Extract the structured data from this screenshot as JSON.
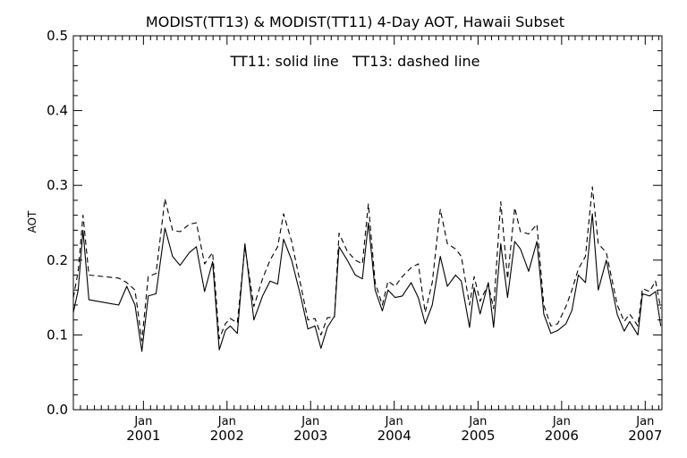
{
  "chart_data": {
    "type": "line",
    "title": "MODIST(TT13) & MODIST(TT11) 4-Day AOT, Hawaii Subset",
    "annotation": "TT11: solid line   TT13: dashed line",
    "ylabel": "AOT",
    "xlabel": "",
    "ylim": [
      0.0,
      0.5
    ],
    "yticks": [
      "0.0",
      "0.1",
      "0.2",
      "0.3",
      "0.4",
      "0.5"
    ],
    "xlim": [
      "2000-03-01",
      "2007-03-15"
    ],
    "xticks": [
      {
        "month": "Jan",
        "year": "2001",
        "date": "2001-01-01"
      },
      {
        "month": "Jan",
        "year": "2002",
        "date": "2002-01-01"
      },
      {
        "month": "Jan",
        "year": "2003",
        "date": "2003-01-01"
      },
      {
        "month": "Jan",
        "year": "2004",
        "date": "2004-01-01"
      },
      {
        "month": "Jan",
        "year": "2005",
        "date": "2005-01-01"
      },
      {
        "month": "Jan",
        "year": "2006",
        "date": "2006-01-01"
      },
      {
        "month": "Jan",
        "year": "2007",
        "date": "2007-01-01"
      }
    ],
    "grid": false,
    "legend": "none",
    "series": [
      {
        "name": "TT11",
        "style": "solid",
        "points": [
          [
            "2000-03-01",
            0.13
          ],
          [
            "2000-03-22",
            0.16
          ],
          [
            "2000-04-12",
            0.24
          ],
          [
            "2000-05-08",
            0.147
          ],
          [
            "2000-09-15",
            0.14
          ],
          [
            "2000-10-20",
            0.165
          ],
          [
            "2000-11-25",
            0.14
          ],
          [
            "2000-12-25",
            0.078
          ],
          [
            "2001-01-22",
            0.152
          ],
          [
            "2001-02-25",
            0.155
          ],
          [
            "2001-04-05",
            0.243
          ],
          [
            "2001-05-08",
            0.205
          ],
          [
            "2001-06-10",
            0.193
          ],
          [
            "2001-07-20",
            0.21
          ],
          [
            "2001-08-20",
            0.218
          ],
          [
            "2001-09-25",
            0.158
          ],
          [
            "2001-10-30",
            0.198
          ],
          [
            "2001-11-28",
            0.08
          ],
          [
            "2001-12-25",
            0.106
          ],
          [
            "2002-01-15",
            0.112
          ],
          [
            "2002-02-15",
            0.102
          ],
          [
            "2002-03-20",
            0.222
          ],
          [
            "2002-04-28",
            0.12
          ],
          [
            "2002-06-05",
            0.152
          ],
          [
            "2002-07-08",
            0.172
          ],
          [
            "2002-08-10",
            0.168
          ],
          [
            "2002-09-05",
            0.228
          ],
          [
            "2002-10-10",
            0.2
          ],
          [
            "2002-11-20",
            0.15
          ],
          [
            "2002-12-20",
            0.108
          ],
          [
            "2003-01-20",
            0.112
          ],
          [
            "2003-02-15",
            0.082
          ],
          [
            "2003-03-15",
            0.11
          ],
          [
            "2003-04-15",
            0.125
          ],
          [
            "2003-05-05",
            0.218
          ],
          [
            "2003-06-10",
            0.2
          ],
          [
            "2003-07-15",
            0.18
          ],
          [
            "2003-08-15",
            0.175
          ],
          [
            "2003-09-10",
            0.25
          ],
          [
            "2003-10-10",
            0.16
          ],
          [
            "2003-11-10",
            0.132
          ],
          [
            "2003-12-05",
            0.16
          ],
          [
            "2004-01-05",
            0.15
          ],
          [
            "2004-02-05",
            0.152
          ],
          [
            "2004-03-15",
            0.17
          ],
          [
            "2004-04-15",
            0.15
          ],
          [
            "2004-05-15",
            0.115
          ],
          [
            "2004-06-15",
            0.14
          ],
          [
            "2004-07-20",
            0.205
          ],
          [
            "2004-08-20",
            0.165
          ],
          [
            "2004-09-25",
            0.18
          ],
          [
            "2004-10-20",
            0.172
          ],
          [
            "2004-11-25",
            0.11
          ],
          [
            "2004-12-15",
            0.163
          ],
          [
            "2005-01-10",
            0.128
          ],
          [
            "2005-02-15",
            0.17
          ],
          [
            "2005-03-10",
            0.11
          ],
          [
            "2005-04-10",
            0.222
          ],
          [
            "2005-05-10",
            0.15
          ],
          [
            "2005-06-10",
            0.225
          ],
          [
            "2005-07-05",
            0.215
          ],
          [
            "2005-08-10",
            0.185
          ],
          [
            "2005-09-15",
            0.225
          ],
          [
            "2005-10-15",
            0.128
          ],
          [
            "2005-11-15",
            0.102
          ],
          [
            "2005-12-15",
            0.106
          ],
          [
            "2006-01-20",
            0.115
          ],
          [
            "2006-02-15",
            0.133
          ],
          [
            "2006-03-15",
            0.18
          ],
          [
            "2006-04-15",
            0.17
          ],
          [
            "2006-05-15",
            0.262
          ],
          [
            "2006-06-10",
            0.16
          ],
          [
            "2006-07-15",
            0.2
          ],
          [
            "2006-09-01",
            0.127
          ],
          [
            "2006-10-01",
            0.105
          ],
          [
            "2006-10-25",
            0.118
          ],
          [
            "2006-11-30",
            0.1
          ],
          [
            "2006-12-20",
            0.155
          ],
          [
            "2007-01-20",
            0.152
          ],
          [
            "2007-02-15",
            0.158
          ],
          [
            "2007-03-10",
            0.112
          ]
        ]
      },
      {
        "name": "TT13",
        "style": "dashed",
        "points": [
          [
            "2000-03-01",
            0.15
          ],
          [
            "2000-03-22",
            0.185
          ],
          [
            "2000-04-12",
            0.26
          ],
          [
            "2000-05-08",
            0.18
          ],
          [
            "2000-09-15",
            0.176
          ],
          [
            "2000-10-20",
            0.17
          ],
          [
            "2000-11-25",
            0.16
          ],
          [
            "2000-12-25",
            0.092
          ],
          [
            "2001-01-22",
            0.178
          ],
          [
            "2001-02-25",
            0.182
          ],
          [
            "2001-04-05",
            0.282
          ],
          [
            "2001-05-08",
            0.24
          ],
          [
            "2001-06-10",
            0.238
          ],
          [
            "2001-07-20",
            0.248
          ],
          [
            "2001-08-20",
            0.25
          ],
          [
            "2001-09-25",
            0.195
          ],
          [
            "2001-10-30",
            0.21
          ],
          [
            "2001-11-28",
            0.095
          ],
          [
            "2001-12-25",
            0.115
          ],
          [
            "2002-01-15",
            0.122
          ],
          [
            "2002-02-15",
            0.116
          ],
          [
            "2002-03-20",
            0.218
          ],
          [
            "2002-04-28",
            0.138
          ],
          [
            "2002-06-05",
            0.175
          ],
          [
            "2002-07-08",
            0.2
          ],
          [
            "2002-08-10",
            0.218
          ],
          [
            "2002-09-05",
            0.262
          ],
          [
            "2002-10-10",
            0.225
          ],
          [
            "2002-11-20",
            0.165
          ],
          [
            "2002-12-20",
            0.12
          ],
          [
            "2003-01-20",
            0.122
          ],
          [
            "2003-02-15",
            0.1
          ],
          [
            "2003-03-15",
            0.123
          ],
          [
            "2003-04-15",
            0.124
          ],
          [
            "2003-05-05",
            0.236
          ],
          [
            "2003-06-10",
            0.212
          ],
          [
            "2003-07-15",
            0.2
          ],
          [
            "2003-08-15",
            0.195
          ],
          [
            "2003-09-10",
            0.275
          ],
          [
            "2003-10-10",
            0.17
          ],
          [
            "2003-11-10",
            0.14
          ],
          [
            "2003-12-05",
            0.172
          ],
          [
            "2004-01-05",
            0.165
          ],
          [
            "2004-02-05",
            0.178
          ],
          [
            "2004-03-15",
            0.19
          ],
          [
            "2004-04-15",
            0.195
          ],
          [
            "2004-05-15",
            0.13
          ],
          [
            "2004-06-15",
            0.17
          ],
          [
            "2004-07-20",
            0.268
          ],
          [
            "2004-08-20",
            0.222
          ],
          [
            "2004-09-25",
            0.215
          ],
          [
            "2004-10-20",
            0.205
          ],
          [
            "2004-11-25",
            0.14
          ],
          [
            "2004-12-15",
            0.178
          ],
          [
            "2005-01-10",
            0.145
          ],
          [
            "2005-02-15",
            0.168
          ],
          [
            "2005-03-10",
            0.135
          ],
          [
            "2005-04-10",
            0.278
          ],
          [
            "2005-05-10",
            0.175
          ],
          [
            "2005-06-10",
            0.27
          ],
          [
            "2005-07-05",
            0.238
          ],
          [
            "2005-08-10",
            0.235
          ],
          [
            "2005-09-15",
            0.248
          ],
          [
            "2005-10-15",
            0.14
          ],
          [
            "2005-11-15",
            0.112
          ],
          [
            "2005-12-15",
            0.115
          ],
          [
            "2006-01-20",
            0.138
          ],
          [
            "2006-02-15",
            0.16
          ],
          [
            "2006-03-15",
            0.188
          ],
          [
            "2006-04-15",
            0.205
          ],
          [
            "2006-05-15",
            0.298
          ],
          [
            "2006-06-10",
            0.222
          ],
          [
            "2006-07-15",
            0.21
          ],
          [
            "2006-09-01",
            0.14
          ],
          [
            "2006-10-01",
            0.118
          ],
          [
            "2006-10-25",
            0.128
          ],
          [
            "2006-11-30",
            0.112
          ],
          [
            "2006-12-20",
            0.162
          ],
          [
            "2007-01-20",
            0.158
          ],
          [
            "2007-02-15",
            0.172
          ],
          [
            "2007-03-10",
            0.135
          ]
        ]
      }
    ]
  }
}
